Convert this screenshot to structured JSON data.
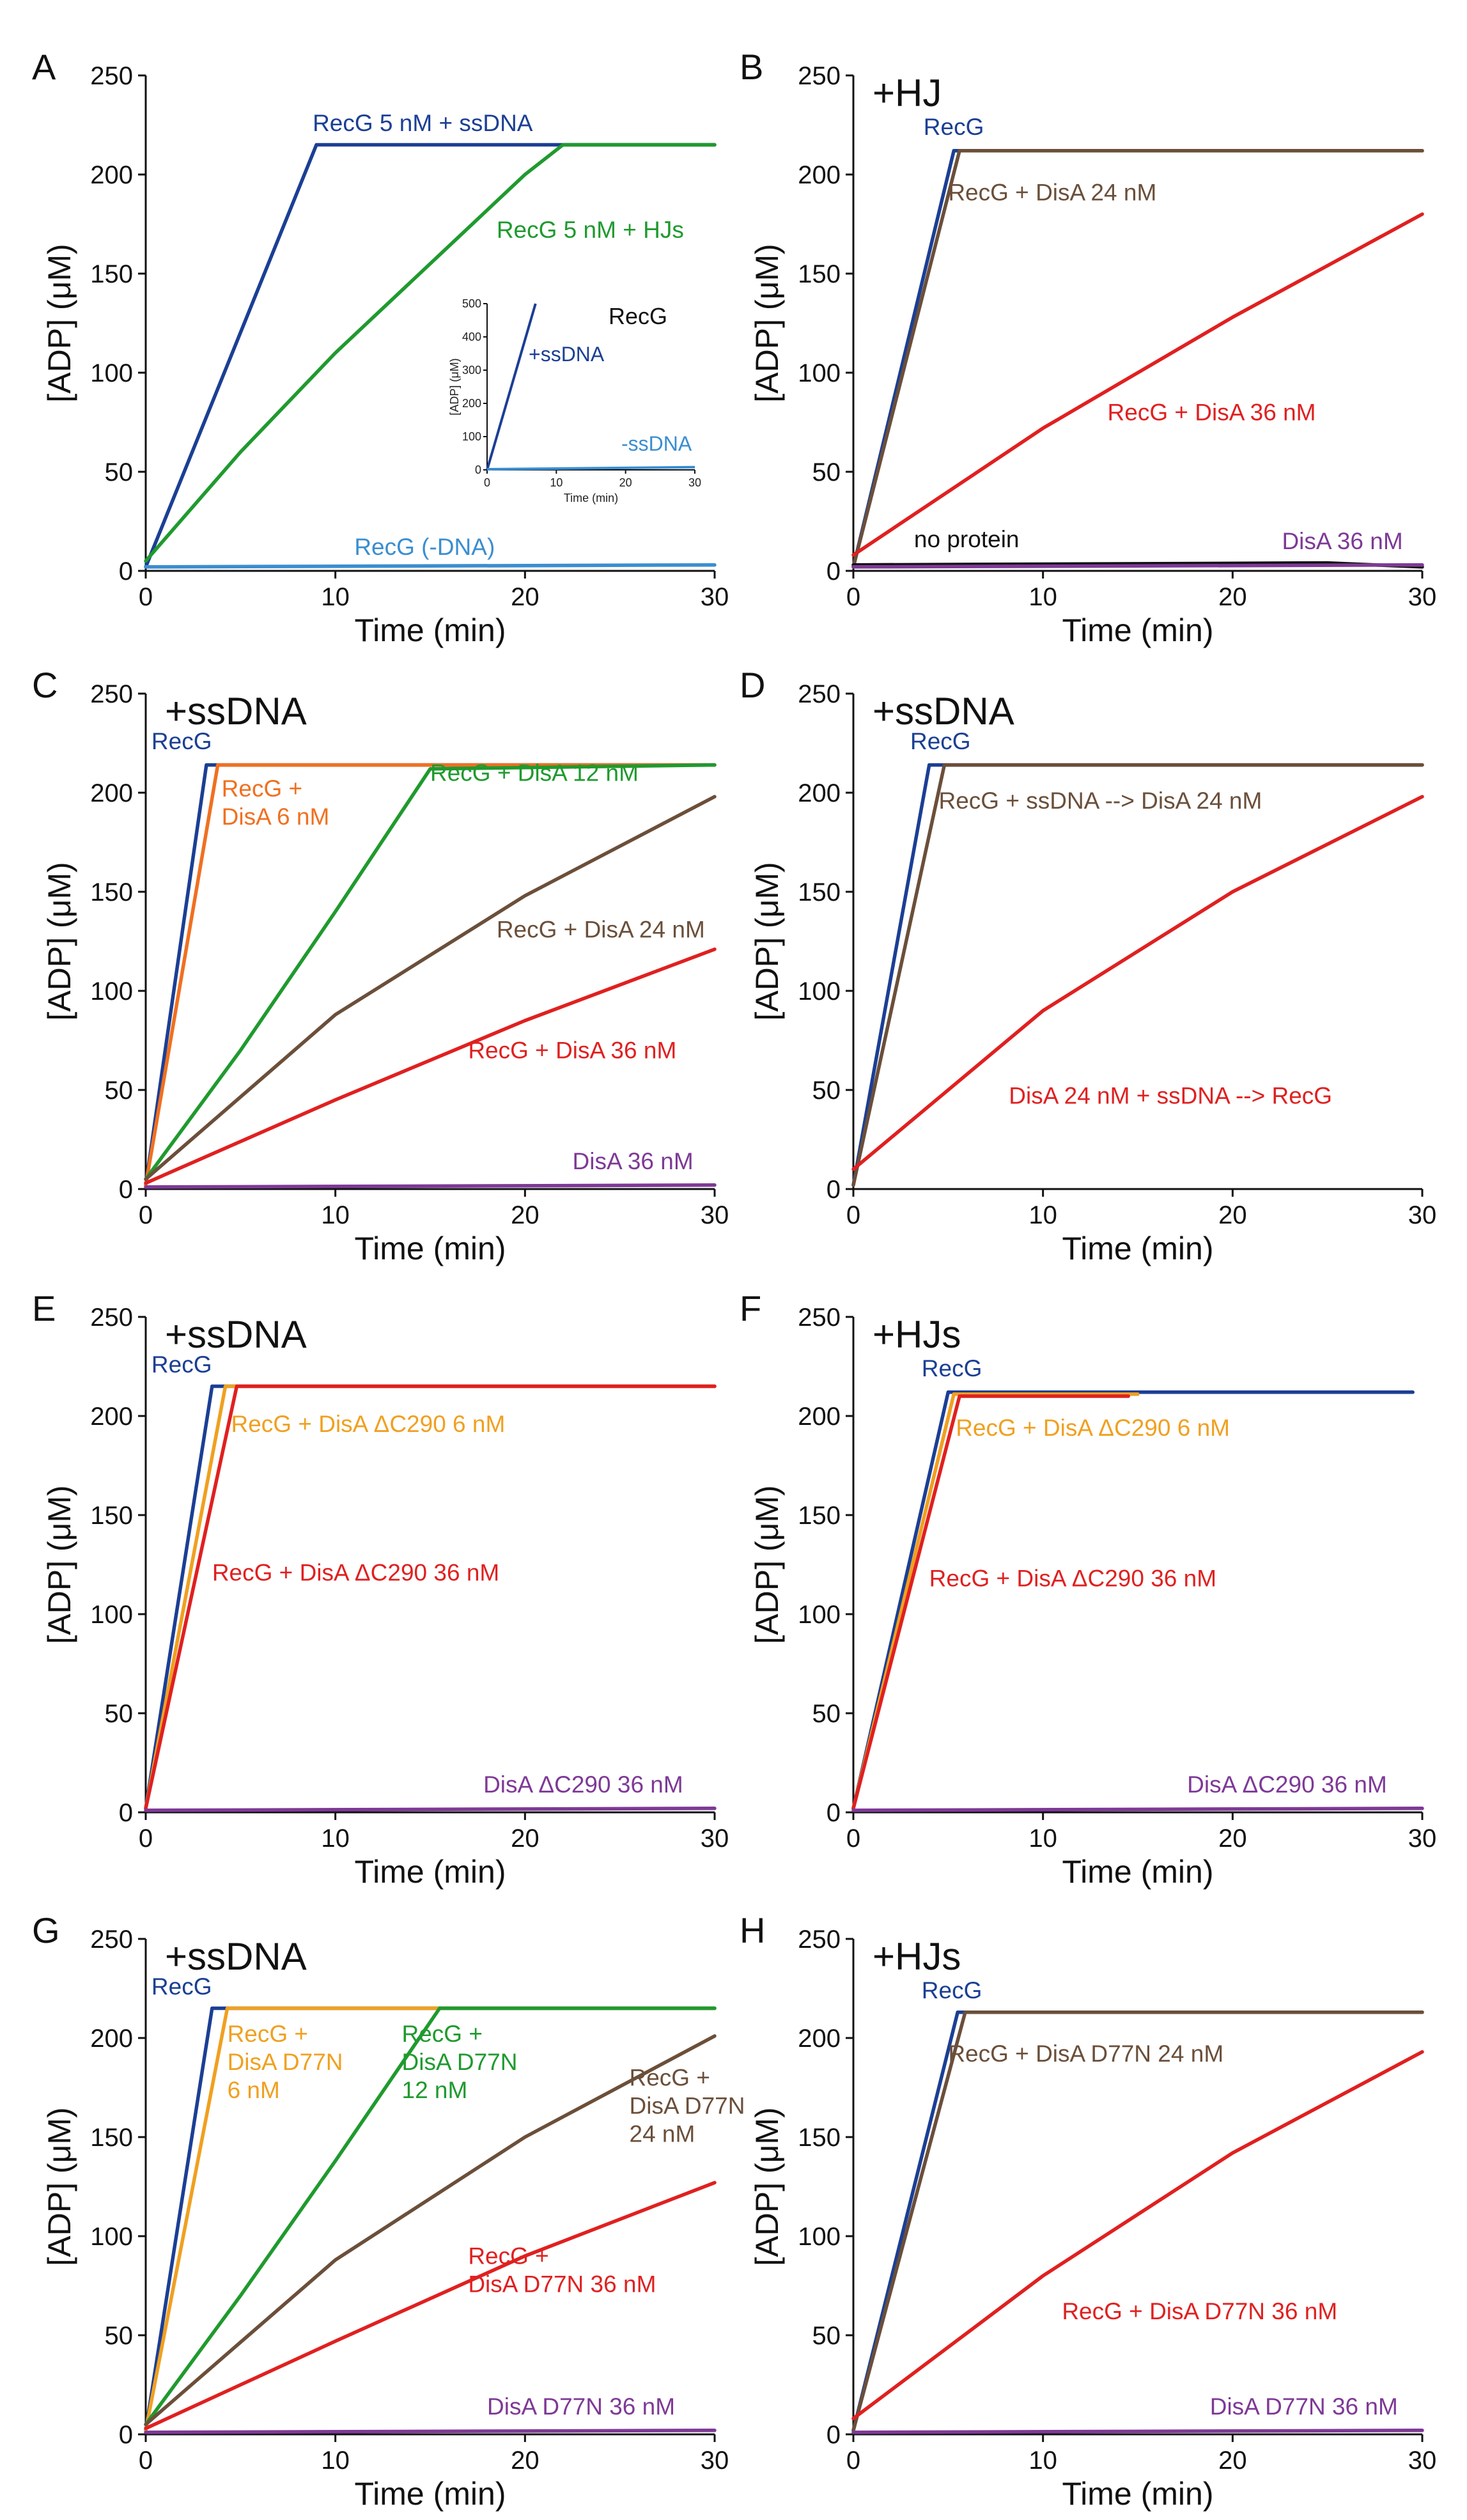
{
  "colors": {
    "recg": "#1b3f94",
    "recg_light": "#3a8ed0",
    "green": "#1f9a2e",
    "orange": "#f07020",
    "amber": "#f0a020",
    "brown": "#6b4f3a",
    "red": "#e02020",
    "purple": "#7e3996",
    "black": "#111111"
  },
  "chart_data": [
    {
      "panel": "A",
      "condition": "",
      "type": "line",
      "xlabel": "Time (min)",
      "ylabel": "[ADP] (μM)",
      "xlim": [
        0,
        30
      ],
      "ylim": [
        0,
        250
      ],
      "xticks": [
        0,
        10,
        20,
        30
      ],
      "yticks": [
        0,
        50,
        100,
        150,
        200,
        250
      ],
      "series": [
        {
          "name": "RecG 5 nM + ssDNA",
          "color": "#1b3f94",
          "x": [
            0,
            9,
            30
          ],
          "y": [
            2,
            215,
            215
          ],
          "label_text": "RecG 5 nM + ssDNA",
          "label_x": 8.8,
          "label_y": 222
        },
        {
          "name": "RecG 5 nM + HJs",
          "color": "#1f9a2e",
          "x": [
            0,
            5,
            10,
            15,
            20,
            22,
            30
          ],
          "y": [
            5,
            60,
            110,
            155,
            200,
            215,
            215
          ],
          "label_text": "RecG 5 nM + HJs",
          "label_x": 18.5,
          "label_y": 168
        },
        {
          "name": "RecG (-DNA)",
          "color": "#3a8ed0",
          "x": [
            0,
            30
          ],
          "y": [
            2,
            3
          ],
          "label_text": "RecG (-DNA)",
          "label_x": 11,
          "label_y": 8
        }
      ],
      "inset": {
        "xlabel": "Time (min)",
        "ylabel": "[ADP] (μM)",
        "xlim": [
          0,
          30
        ],
        "ylim": [
          0,
          500
        ],
        "xticks": [
          0,
          10,
          20,
          30
        ],
        "yticks": [
          0,
          100,
          200,
          300,
          400,
          500
        ],
        "title": "RecG",
        "series": [
          {
            "name": "+ssDNA",
            "color": "#1b3f94",
            "x": [
              0,
              7
            ],
            "y": [
              0,
              500
            ],
            "label_text": "+ssDNA"
          },
          {
            "name": "-ssDNA",
            "color": "#3a8ed0",
            "x": [
              0,
              30
            ],
            "y": [
              2,
              8
            ],
            "label_text": "-ssDNA"
          }
        ]
      }
    },
    {
      "panel": "B",
      "condition": "+HJ",
      "type": "line",
      "xlabel": "Time (min)",
      "ylabel": "[ADP] (μM)",
      "xlim": [
        0,
        30
      ],
      "ylim": [
        0,
        250
      ],
      "xticks": [
        0,
        10,
        20,
        30
      ],
      "yticks": [
        0,
        50,
        100,
        150,
        200,
        250
      ],
      "series": [
        {
          "name": "RecG",
          "color": "#1b3f94",
          "x": [
            0,
            5.3,
            30
          ],
          "y": [
            2,
            212,
            212
          ],
          "label_text": "RecG",
          "label_x": 3.7,
          "label_y": 220
        },
        {
          "name": "RecG + DisA 24 nM",
          "color": "#6b4f3a",
          "x": [
            0,
            5.6,
            30
          ],
          "y": [
            2,
            212,
            212
          ],
          "label_text": "RecG + DisA 24 nM",
          "label_x": 5,
          "label_y": 187
        },
        {
          "name": "RecG + DisA 36 nM",
          "color": "#e02020",
          "x": [
            0,
            10,
            20,
            30
          ],
          "y": [
            8,
            72,
            128,
            180
          ],
          "label_text": "RecG + DisA 36 nM",
          "label_x": 13.4,
          "label_y": 76
        },
        {
          "name": "no protein",
          "color": "#111111",
          "x": [
            0,
            25,
            30
          ],
          "y": [
            3,
            4,
            2
          ],
          "label_text": "no protein",
          "label_x": 3.2,
          "label_y": 12
        },
        {
          "name": "DisA 36 nM",
          "color": "#7e3996",
          "x": [
            0,
            30
          ],
          "y": [
            2,
            3
          ],
          "label_text": "DisA 36 nM",
          "label_x": 22.6,
          "label_y": 11
        }
      ]
    },
    {
      "panel": "C",
      "condition": "+ssDNA",
      "type": "line",
      "xlabel": "Time (min)",
      "ylabel": "[ADP] (μM)",
      "xlim": [
        0,
        30
      ],
      "ylim": [
        0,
        250
      ],
      "xticks": [
        0,
        10,
        20,
        30
      ],
      "yticks": [
        0,
        50,
        100,
        150,
        200,
        250
      ],
      "series": [
        {
          "name": "RecG",
          "color": "#1b3f94",
          "x": [
            0,
            3.2,
            30
          ],
          "y": [
            2,
            214,
            214
          ],
          "label_text": "RecG",
          "label_x": 0.3,
          "label_y": 222
        },
        {
          "name": "RecG + DisA 6 nM",
          "color": "#f07020",
          "x": [
            0,
            3.8,
            30
          ],
          "y": [
            2,
            214,
            214
          ],
          "label_text": "RecG +\nDisA 6 nM",
          "label_x": 4,
          "label_y": 198
        },
        {
          "name": "RecG + DisA 12 nM",
          "color": "#1f9a2e",
          "x": [
            0,
            5,
            10,
            15,
            30
          ],
          "y": [
            5,
            70,
            140,
            212,
            214
          ],
          "label_text": "RecG + DisA 12 nM",
          "label_x": 15,
          "label_y": 206
        },
        {
          "name": "RecG + DisA 24 nM",
          "color": "#6b4f3a",
          "x": [
            0,
            10,
            20,
            30
          ],
          "y": [
            5,
            88,
            148,
            198
          ],
          "label_text": "RecG + DisA 24 nM",
          "label_x": 18.5,
          "label_y": 127
        },
        {
          "name": "RecG + DisA 36 nM",
          "color": "#e02020",
          "x": [
            0,
            10,
            20,
            30
          ],
          "y": [
            3,
            45,
            85,
            121
          ],
          "label_text": "RecG + DisA 36 nM",
          "label_x": 17,
          "label_y": 66
        },
        {
          "name": "DisA 36 nM",
          "color": "#7e3996",
          "x": [
            0,
            30
          ],
          "y": [
            1,
            2
          ],
          "label_text": "DisA 36 nM",
          "label_x": 22.5,
          "label_y": 10
        }
      ]
    },
    {
      "panel": "D",
      "condition": "+ssDNA",
      "type": "line",
      "xlabel": "Time (min)",
      "ylabel": "[ADP] (μM)",
      "xlim": [
        0,
        30
      ],
      "ylim": [
        0,
        250
      ],
      "xticks": [
        0,
        10,
        20,
        30
      ],
      "yticks": [
        0,
        50,
        100,
        150,
        200,
        250
      ],
      "series": [
        {
          "name": "RecG",
          "color": "#1b3f94",
          "x": [
            0,
            4,
            30
          ],
          "y": [
            2,
            214,
            214
          ],
          "label_text": "RecG",
          "label_x": 3,
          "label_y": 222
        },
        {
          "name": "RecG + ssDNA --> DisA 24 nM",
          "color": "#6b4f3a",
          "x": [
            0,
            4.8,
            30
          ],
          "y": [
            2,
            214,
            214
          ],
          "label_text": "RecG + ssDNA --> DisA 24 nM",
          "label_x": 4.5,
          "label_y": 192
        },
        {
          "name": "DisA 24 nM + ssDNA --> RecG",
          "color": "#e02020",
          "x": [
            0,
            10,
            20,
            30
          ],
          "y": [
            10,
            90,
            150,
            198
          ],
          "label_text": "DisA 24 nM + ssDNA --> RecG",
          "label_x": 8.2,
          "label_y": 43
        }
      ]
    },
    {
      "panel": "E",
      "condition": "+ssDNA",
      "type": "line",
      "xlabel": "Time (min)",
      "ylabel": "[ADP] (μM)",
      "xlim": [
        0,
        30
      ],
      "ylim": [
        0,
        250
      ],
      "xticks": [
        0,
        10,
        20,
        30
      ],
      "yticks": [
        0,
        50,
        100,
        150,
        200,
        250
      ],
      "series": [
        {
          "name": "RecG",
          "color": "#1b3f94",
          "x": [
            0,
            3.5,
            30
          ],
          "y": [
            2,
            215,
            215
          ],
          "label_text": "RecG",
          "label_x": 0.3,
          "label_y": 222
        },
        {
          "name": "RecG + DisA ΔC290 6 nM",
          "color": "#f0a020",
          "x": [
            0,
            4.2,
            30
          ],
          "y": [
            2,
            215,
            215
          ],
          "label_text": "RecG + DisA ΔC290 6 nM",
          "label_x": 4.5,
          "label_y": 192
        },
        {
          "name": "RecG + DisA ΔC290 36 nM",
          "color": "#e02020",
          "x": [
            0,
            4.8,
            30
          ],
          "y": [
            2,
            215,
            215
          ],
          "label_text": "RecG + DisA ΔC290 36 nM",
          "label_x": 3.5,
          "label_y": 117
        },
        {
          "name": "DisA ΔC290 36 nM",
          "color": "#7e3996",
          "x": [
            0,
            30
          ],
          "y": [
            1,
            2
          ],
          "label_text": "DisA ΔC290 36 nM",
          "label_x": 17.8,
          "label_y": 10
        }
      ]
    },
    {
      "panel": "F",
      "condition": "+HJs",
      "type": "line",
      "xlabel": "Time (min)",
      "ylabel": "[ADP] (μM)",
      "xlim": [
        0,
        30
      ],
      "ylim": [
        0,
        250
      ],
      "xticks": [
        0,
        10,
        20,
        30
      ],
      "yticks": [
        0,
        50,
        100,
        150,
        200,
        250
      ],
      "series": [
        {
          "name": "RecG",
          "color": "#1b3f94",
          "x": [
            0,
            5,
            29.5
          ],
          "y": [
            2,
            212,
            212
          ],
          "label_text": "RecG",
          "label_x": 3.6,
          "label_y": 220
        },
        {
          "name": "RecG + DisA ΔC290 6 nM",
          "color": "#f0a020",
          "x": [
            0,
            5.3,
            15
          ],
          "y": [
            2,
            211,
            211
          ],
          "label_text": "RecG + DisA ΔC290 6 nM",
          "label_x": 5.4,
          "label_y": 190
        },
        {
          "name": "RecG + DisA ΔC290 36 nM",
          "color": "#e02020",
          "x": [
            0,
            5.6,
            14.5
          ],
          "y": [
            2,
            210,
            210
          ],
          "label_text": "RecG + DisA ΔC290 36 nM",
          "label_x": 4,
          "label_y": 114
        },
        {
          "name": "DisA ΔC290 36 nM",
          "color": "#7e3996",
          "x": [
            0,
            30
          ],
          "y": [
            1,
            2
          ],
          "label_text": "DisA ΔC290 36 nM",
          "label_x": 17.6,
          "label_y": 10
        }
      ]
    },
    {
      "panel": "G",
      "condition": "+ssDNA",
      "type": "line",
      "xlabel": "Time (min)",
      "ylabel": "[ADP] (μM)",
      "xlim": [
        0,
        30
      ],
      "ylim": [
        0,
        250
      ],
      "xticks": [
        0,
        10,
        20,
        30
      ],
      "yticks": [
        0,
        50,
        100,
        150,
        200,
        250
      ],
      "series": [
        {
          "name": "RecG",
          "color": "#1b3f94",
          "x": [
            0,
            3.5,
            30
          ],
          "y": [
            2,
            215,
            215
          ],
          "label_text": "RecG",
          "label_x": 0.3,
          "label_y": 222
        },
        {
          "name": "RecG + DisA D77N 6 nM",
          "color": "#f0a020",
          "x": [
            0,
            4.3,
            30
          ],
          "y": [
            2,
            215,
            215
          ],
          "label_text": "RecG +\nDisA D77N\n6 nM",
          "label_x": 4.3,
          "label_y": 198
        },
        {
          "name": "RecG + DisA D77N 12 nM",
          "color": "#1f9a2e",
          "x": [
            0,
            5,
            10,
            15.5,
            30
          ],
          "y": [
            5,
            70,
            138,
            215,
            215
          ],
          "label_text": "RecG +\nDisA D77N\n12 nM",
          "label_x": 13.5,
          "label_y": 198
        },
        {
          "name": "RecG + DisA D77N 24 nM",
          "color": "#6b4f3a",
          "x": [
            0,
            10,
            20,
            30
          ],
          "y": [
            5,
            88,
            150,
            201
          ],
          "label_text": "RecG +\nDisA D77N\n24 nM",
          "label_x": 25.5,
          "label_y": 176
        },
        {
          "name": "RecG + DisA D77N 36 nM",
          "color": "#e02020",
          "x": [
            0,
            10,
            20,
            30
          ],
          "y": [
            3,
            47,
            90,
            127
          ],
          "label_text": "RecG +\nDisA D77N 36 nM",
          "label_x": 17,
          "label_y": 86
        },
        {
          "name": "DisA D77N 36 nM",
          "color": "#7e3996",
          "x": [
            0,
            30
          ],
          "y": [
            1,
            2
          ],
          "label_text": "DisA D77N 36 nM",
          "label_x": 18,
          "label_y": 10
        }
      ]
    },
    {
      "panel": "H",
      "condition": "+HJs",
      "type": "line",
      "xlabel": "Time (min)",
      "ylabel": "[ADP] (μM)",
      "xlim": [
        0,
        30
      ],
      "ylim": [
        0,
        250
      ],
      "xticks": [
        0,
        10,
        20,
        30
      ],
      "yticks": [
        0,
        50,
        100,
        150,
        200,
        250
      ],
      "series": [
        {
          "name": "RecG",
          "color": "#1b3f94",
          "x": [
            0,
            5.5,
            30
          ],
          "y": [
            2,
            213,
            213
          ],
          "label_text": "RecG",
          "label_x": 3.6,
          "label_y": 220
        },
        {
          "name": "RecG + DisA D77N 24 nM",
          "color": "#6b4f3a",
          "x": [
            0,
            5.9,
            30
          ],
          "y": [
            2,
            213,
            213
          ],
          "label_text": "RecG + DisA D77N 24 nM",
          "label_x": 5,
          "label_y": 188
        },
        {
          "name": "RecG + DisA D77N 36 nM",
          "color": "#e02020",
          "x": [
            0,
            10,
            20,
            30
          ],
          "y": [
            8,
            80,
            142,
            193
          ],
          "label_text": "RecG + DisA D77N 36 nM",
          "label_x": 11,
          "label_y": 58
        },
        {
          "name": "DisA D77N 36 nM",
          "color": "#7e3996",
          "x": [
            0,
            30
          ],
          "y": [
            1,
            2
          ],
          "label_text": "DisA D77N 36 nM",
          "label_x": 18.8,
          "label_y": 10
        }
      ]
    }
  ]
}
